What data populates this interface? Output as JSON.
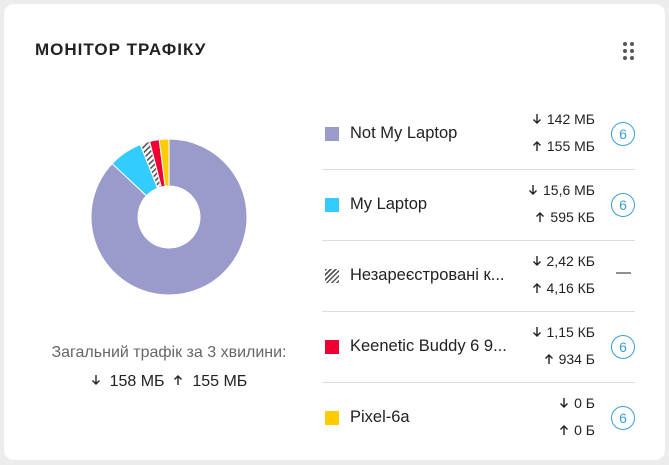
{
  "header": {
    "title": "МОНІТОР ТРАФІКУ"
  },
  "summary": {
    "label": "Загальний трафік за 3 хвилини:",
    "down": "158 МБ",
    "up": "155 МБ"
  },
  "devices": [
    {
      "name": "Not My Laptop",
      "down": "142 МБ",
      "up": "155 МБ",
      "badge": "6",
      "color": "#9b9bcb",
      "share": 87
    },
    {
      "name": "My Laptop",
      "down": "15,6 МБ",
      "up": "595 КБ",
      "badge": "6",
      "color": "#33ccff",
      "share": 7
    },
    {
      "name": "Незареєстровані к...",
      "down": "2,42 КБ",
      "up": "4,16 КБ",
      "status": "—",
      "color": "#555555",
      "pattern": "hatch",
      "share": 2
    },
    {
      "name": "Keenetic Buddy 6 9...",
      "down": "1,15 КБ",
      "up": "934 Б",
      "badge": "6",
      "color": "#ee0033",
      "share": 2
    },
    {
      "name": "Pixel-6a",
      "down": "0 Б",
      "up": "0 Б",
      "badge": "6",
      "color": "#ffcc00",
      "share": 2
    }
  ]
}
